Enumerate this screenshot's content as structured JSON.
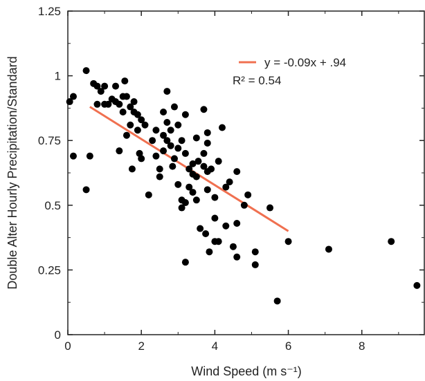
{
  "chart_data": {
    "type": "scatter",
    "xlabel": "Wind Speed (m s⁻¹)",
    "ylabel": "Double Alter Hourly Precipitation/Standard",
    "xlim": [
      0,
      9.7
    ],
    "ylim": [
      0,
      1.25
    ],
    "x_ticks": [
      0,
      2,
      4,
      6,
      8
    ],
    "y_ticks": [
      0,
      0.25,
      0.5,
      0.75,
      1,
      1.25
    ],
    "x_tick_labels": [
      "0",
      "2",
      "4",
      "6",
      "8"
    ],
    "y_tick_labels": [
      "0",
      "0.25",
      "0.5",
      "0.75",
      "1",
      "1.25"
    ],
    "grid": false,
    "legend_position": "top-right",
    "trendline": {
      "label": "y = -0.09x + .94",
      "r2_label": "R² = 0.54",
      "x_start": 0.6,
      "x_end": 6.0,
      "y_start": 0.88,
      "y_end": 0.4,
      "color": "#f07050"
    },
    "point_color": "#000000",
    "points": [
      [
        0.05,
        0.9
      ],
      [
        0.15,
        0.92
      ],
      [
        0.15,
        0.69
      ],
      [
        0.5,
        1.02
      ],
      [
        0.5,
        0.56
      ],
      [
        0.6,
        0.69
      ],
      [
        0.7,
        0.97
      ],
      [
        0.8,
        0.96
      ],
      [
        0.8,
        0.89
      ],
      [
        0.9,
        0.94
      ],
      [
        1.0,
        0.96
      ],
      [
        1.0,
        0.89
      ],
      [
        1.1,
        0.89
      ],
      [
        1.2,
        0.91
      ],
      [
        1.3,
        0.96
      ],
      [
        1.3,
        0.9
      ],
      [
        1.4,
        0.89
      ],
      [
        1.4,
        0.71
      ],
      [
        1.5,
        0.92
      ],
      [
        1.5,
        0.86
      ],
      [
        1.55,
        0.98
      ],
      [
        1.6,
        0.92
      ],
      [
        1.6,
        0.77
      ],
      [
        1.7,
        0.88
      ],
      [
        1.7,
        0.81
      ],
      [
        1.75,
        0.64
      ],
      [
        1.8,
        0.9
      ],
      [
        1.8,
        0.86
      ],
      [
        1.9,
        0.85
      ],
      [
        1.9,
        0.79
      ],
      [
        1.95,
        0.7
      ],
      [
        2.0,
        0.83
      ],
      [
        2.0,
        0.68
      ],
      [
        2.1,
        0.81
      ],
      [
        2.2,
        0.54
      ],
      [
        2.3,
        0.75
      ],
      [
        2.4,
        0.79
      ],
      [
        2.4,
        0.69
      ],
      [
        2.5,
        0.64
      ],
      [
        2.5,
        0.61
      ],
      [
        2.6,
        0.77
      ],
      [
        2.6,
        0.86
      ],
      [
        2.6,
        0.71
      ],
      [
        2.7,
        0.94
      ],
      [
        2.7,
        0.82
      ],
      [
        2.7,
        0.75
      ],
      [
        2.8,
        0.79
      ],
      [
        2.8,
        0.73
      ],
      [
        2.85,
        0.65
      ],
      [
        2.9,
        0.88
      ],
      [
        2.9,
        0.68
      ],
      [
        3.0,
        0.81
      ],
      [
        3.0,
        0.72
      ],
      [
        3.0,
        0.58
      ],
      [
        3.1,
        0.75
      ],
      [
        3.1,
        0.52
      ],
      [
        3.1,
        0.49
      ],
      [
        3.2,
        0.85
      ],
      [
        3.2,
        0.7
      ],
      [
        3.2,
        0.51
      ],
      [
        3.2,
        0.28
      ],
      [
        3.3,
        0.64
      ],
      [
        3.3,
        0.57
      ],
      [
        3.4,
        0.66
      ],
      [
        3.4,
        0.62
      ],
      [
        3.4,
        0.55
      ],
      [
        3.5,
        0.76
      ],
      [
        3.5,
        0.61
      ],
      [
        3.5,
        0.52
      ],
      [
        3.55,
        0.67
      ],
      [
        3.6,
        0.41
      ],
      [
        3.7,
        0.87
      ],
      [
        3.7,
        0.7
      ],
      [
        3.7,
        0.65
      ],
      [
        3.75,
        0.39
      ],
      [
        3.8,
        0.78
      ],
      [
        3.8,
        0.74
      ],
      [
        3.8,
        0.63
      ],
      [
        3.8,
        0.56
      ],
      [
        3.85,
        0.32
      ],
      [
        3.9,
        0.64
      ],
      [
        4.0,
        0.53
      ],
      [
        4.0,
        0.45
      ],
      [
        4.0,
        0.36
      ],
      [
        4.1,
        0.67
      ],
      [
        4.1,
        0.36
      ],
      [
        4.2,
        0.8
      ],
      [
        4.3,
        0.57
      ],
      [
        4.3,
        0.42
      ],
      [
        4.4,
        0.59
      ],
      [
        4.5,
        0.34
      ],
      [
        4.6,
        0.63
      ],
      [
        4.6,
        0.43
      ],
      [
        4.6,
        0.3
      ],
      [
        4.8,
        0.5
      ],
      [
        4.9,
        0.54
      ],
      [
        5.1,
        0.32
      ],
      [
        5.1,
        0.27
      ],
      [
        5.5,
        0.49
      ],
      [
        5.7,
        0.13
      ],
      [
        6.0,
        0.36
      ],
      [
        7.1,
        0.33
      ],
      [
        8.8,
        0.36
      ],
      [
        9.5,
        0.19
      ]
    ]
  }
}
